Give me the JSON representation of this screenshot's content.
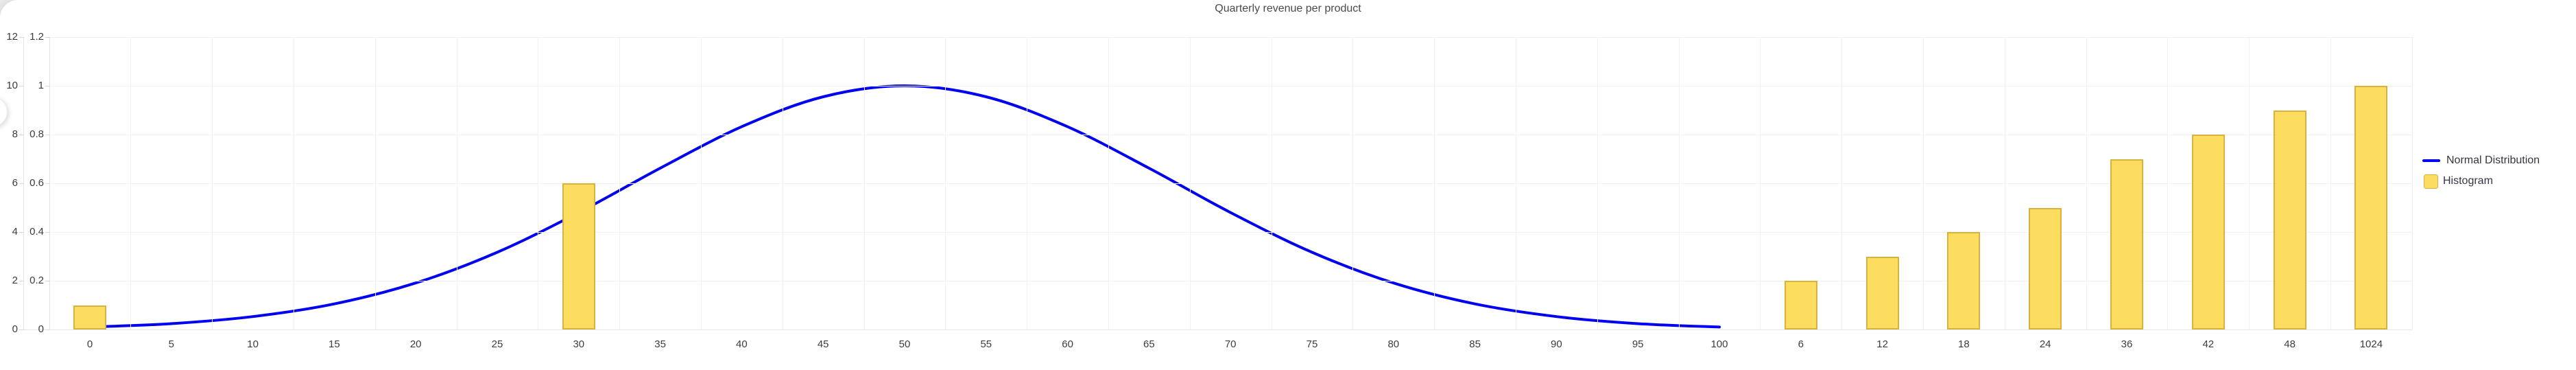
{
  "title": "Quarterly revenue per product",
  "colors": {
    "line": "#0101f2",
    "bar_fill": "#fcdd60",
    "bar_border": "#d9b13f",
    "grid": "#f1f1f1",
    "axis_line": "#e3e3e3",
    "tick": "#d9d9d9",
    "axis_text": "#3c3c3c",
    "title_text": "#4a4a52",
    "legend_text": "#35353f",
    "page_bg": "#ebebeb",
    "card_bg": "#ffffff"
  },
  "chart_data": {
    "type": "mixed-line-bar",
    "title": "Quarterly revenue per product",
    "grid": true,
    "legend": {
      "position": "right",
      "items": [
        "Normal Distribution",
        "Histogram"
      ]
    },
    "x_categories": [
      "0",
      "5",
      "10",
      "15",
      "20",
      "25",
      "30",
      "35",
      "40",
      "45",
      "50",
      "55",
      "60",
      "65",
      "70",
      "75",
      "80",
      "85",
      "90",
      "95",
      "100",
      "6",
      "12",
      "18",
      "24",
      "36",
      "42",
      "48",
      "1024"
    ],
    "y_axis_outer": {
      "min": 0,
      "max": 12,
      "interval": 2,
      "tick_labels": [
        "0",
        "2",
        "4",
        "6",
        "8",
        "10",
        "12"
      ]
    },
    "y_axis_inner": {
      "min": 0,
      "max": 1.2,
      "interval": 0.2,
      "tick_labels": [
        "0",
        "0.2",
        "0.4",
        "0.6",
        "0.8",
        "1",
        "1.2"
      ]
    },
    "series": [
      {
        "name": "Normal Distribution",
        "type": "line",
        "smooth": true,
        "values": [
          0.01,
          0.024,
          0.053,
          0.105,
          0.191,
          0.317,
          0.48,
          0.662,
          0.832,
          0.955,
          1,
          0.955,
          0.832,
          0.662,
          0.48,
          0.317,
          0.191,
          0.105,
          0.053,
          0.024,
          0.01,
          null,
          null,
          null,
          null,
          null,
          null,
          null,
          null
        ]
      },
      {
        "name": "Histogram",
        "type": "bar",
        "values": [
          0.1,
          null,
          null,
          null,
          null,
          null,
          0.6,
          null,
          null,
          null,
          null,
          null,
          null,
          null,
          null,
          null,
          null,
          null,
          null,
          null,
          null,
          0.2,
          0.3,
          0.4,
          0.5,
          0.7,
          0.8,
          0.9,
          1
        ]
      }
    ]
  }
}
